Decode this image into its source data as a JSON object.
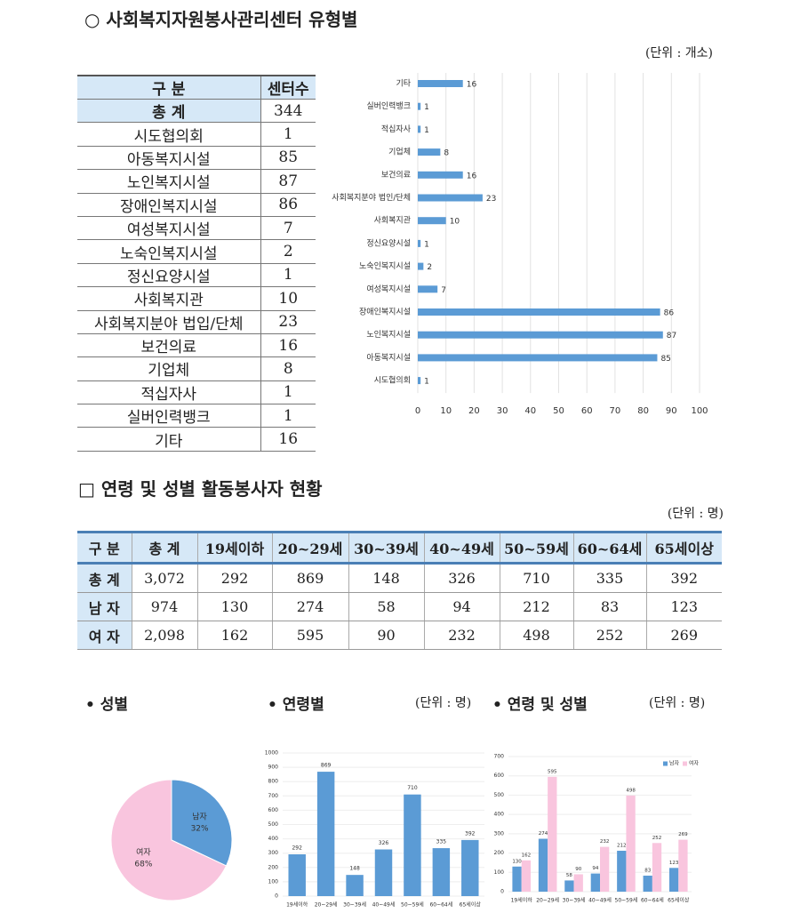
{
  "section1": {
    "title": "○ 사회복지자원봉사관리센터 유형별",
    "unit": "(단위 : 개소)",
    "table": {
      "header": [
        "구  분",
        "센터수"
      ],
      "rows": [
        [
          "총  계",
          "344"
        ],
        [
          "시도협의회",
          "1"
        ],
        [
          "아동복지시설",
          "85"
        ],
        [
          "노인복지시설",
          "87"
        ],
        [
          "장애인복지시설",
          "86"
        ],
        [
          "여성복지시설",
          "7"
        ],
        [
          "노숙인복지시설",
          "2"
        ],
        [
          "정신요양시설",
          "1"
        ],
        [
          "사회복지관",
          "10"
        ],
        [
          "사회복지분야 법입/단체",
          "23"
        ],
        [
          "보건의료",
          "16"
        ],
        [
          "기업체",
          "8"
        ],
        [
          "적십자사",
          "1"
        ],
        [
          "실버인력뱅크",
          "1"
        ],
        [
          "기타",
          "16"
        ]
      ]
    }
  },
  "section2": {
    "title": "□ 연령 및 성별 활동봉사자 현황",
    "unit": "(단위 : 명)",
    "table": {
      "header": [
        "구 분",
        "총 계",
        "19세이하",
        "20~29세",
        "30~39세",
        "40~49세",
        "50~59세",
        "60~64세",
        "65세이상"
      ],
      "rows": [
        [
          "총 계",
          "3,072",
          "292",
          "869",
          "148",
          "326",
          "710",
          "335",
          "392"
        ],
        [
          "남 자",
          "974",
          "130",
          "274",
          "58",
          "94",
          "212",
          "83",
          "123"
        ],
        [
          "여 자",
          "2,098",
          "162",
          "595",
          "90",
          "232",
          "498",
          "252",
          "269"
        ]
      ]
    }
  },
  "section3": {
    "gender_heading": "• 성별",
    "age_heading": "• 연령별",
    "age_unit": "(단위 : 명)",
    "age_gender_heading": "• 연령 및 성별",
    "age_gender_unit": "(단위 : 명)"
  },
  "chart_data": [
    {
      "type": "hbar",
      "categories": [
        "기타",
        "실버인력뱅크",
        "적십자사",
        "기업체",
        "보건의료",
        "사회복지분야 법인/단체",
        "사회복지관",
        "정신요양시설",
        "노숙인복지시설",
        "여성복지시설",
        "장애인복지시설",
        "노인복지시설",
        "아동복지시설",
        "시도협의회"
      ],
      "values": [
        16,
        1,
        1,
        8,
        16,
        23,
        10,
        1,
        2,
        7,
        86,
        87,
        85,
        1
      ],
      "color": "#5b9bd5",
      "xlim": [
        0,
        100
      ],
      "xticks": [
        0,
        10,
        20,
        30,
        40,
        50,
        60,
        70,
        80,
        90,
        100
      ],
      "grid": true
    },
    {
      "type": "pie",
      "categories": [
        "남자",
        "여자"
      ],
      "values": [
        32,
        68
      ],
      "value_labels": [
        "32%",
        "68%"
      ],
      "colors": [
        "#5b9bd5",
        "#f9c5de"
      ]
    },
    {
      "type": "bar",
      "categories": [
        "19세이하",
        "20~29세",
        "30~39세",
        "40~49세",
        "50~59세",
        "60~64세",
        "65세이상"
      ],
      "values": [
        292,
        869,
        148,
        326,
        710,
        335,
        392
      ],
      "color": "#5b9bd5",
      "ylim": [
        0,
        1000
      ],
      "yticks": [
        0,
        100,
        200,
        300,
        400,
        500,
        600,
        700,
        800,
        900,
        1000
      ],
      "grid": true
    },
    {
      "type": "grouped_bar",
      "categories": [
        "19세이하",
        "20~29세",
        "30~39세",
        "40~49세",
        "50~59세",
        "60~64세",
        "65세이상"
      ],
      "series": [
        {
          "name": "남자",
          "color": "#5b9bd5",
          "values": [
            130,
            274,
            58,
            94,
            212,
            83,
            123
          ]
        },
        {
          "name": "여자",
          "color": "#f9c5de",
          "values": [
            162,
            595,
            90,
            232,
            498,
            252,
            269
          ]
        }
      ],
      "ylim": [
        0,
        700
      ],
      "yticks": [
        0,
        100,
        200,
        300,
        400,
        500,
        600,
        700
      ],
      "grid": true,
      "legend": "upper right"
    }
  ]
}
